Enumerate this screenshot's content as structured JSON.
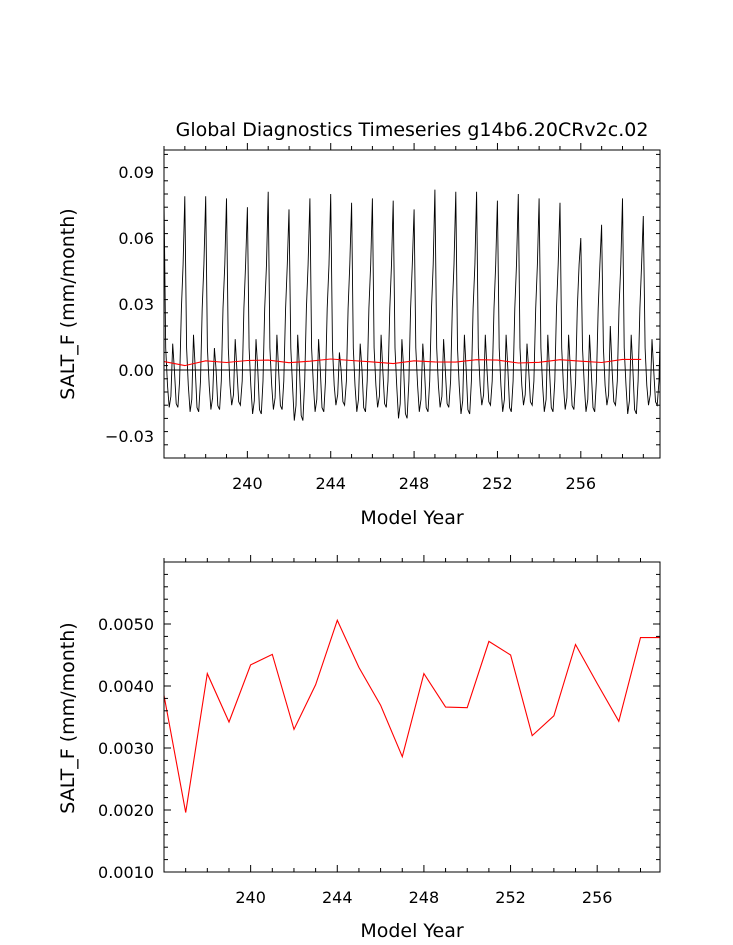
{
  "title": "Global Diagnostics Timeseries g14b6.20CRv2c.02",
  "chart_data": [
    {
      "type": "line",
      "xlabel": "Model Year",
      "ylabel": "SALT_F (mm/month)",
      "xlim": [
        236.0,
        259.8
      ],
      "ylim": [
        -0.04,
        0.1
      ],
      "xticks": [
        240,
        244,
        248,
        252,
        256
      ],
      "xtick_labels": [
        "240",
        "244",
        "248",
        "252",
        "256"
      ],
      "yticks": [
        -0.03,
        0.0,
        0.03,
        0.06,
        0.09
      ],
      "ytick_labels": [
        "−0.03",
        "0.00",
        "0.03",
        "0.06",
        "0.09"
      ],
      "zero_line": true,
      "series": [
        {
          "kind": "monthly",
          "color": "#000000",
          "start": 236.0,
          "months_per_year": 12,
          "annual_peaks": [
            0.078,
            0.079,
            0.079,
            0.078,
            0.074,
            0.081,
            0.073,
            0.078,
            0.08,
            0.076,
            0.078,
            0.077,
            0.073,
            0.082,
            0.081,
            0.081,
            0.077,
            0.08,
            0.078,
            0.076,
            0.06,
            0.066,
            0.078,
            0.07
          ],
          "secondary_peaks": [
            0.012,
            0.016,
            0.01,
            0.014,
            0.014,
            0.016,
            0.016,
            0.014,
            0.008,
            0.012,
            0.016,
            0.014,
            0.012,
            0.014,
            0.016,
            0.016,
            0.016,
            0.012,
            0.016,
            0.016,
            0.016,
            0.02,
            0.016,
            0.014
          ],
          "troughs": [
            -0.017,
            -0.019,
            -0.018,
            -0.016,
            -0.02,
            -0.018,
            -0.023,
            -0.019,
            -0.016,
            -0.019,
            -0.017,
            -0.022,
            -0.019,
            -0.017,
            -0.02,
            -0.016,
            -0.019,
            -0.016,
            -0.019,
            -0.018,
            -0.019,
            -0.016,
            -0.02,
            -0.016
          ]
        },
        {
          "kind": "annual_mean",
          "color": "#ff0000",
          "x": [
            236.0,
            237.0,
            238.0,
            239.0,
            240.0,
            241.0,
            242.0,
            243.0,
            244.0,
            245.0,
            246.0,
            247.0,
            248.0,
            249.0,
            250.0,
            251.0,
            252.0,
            253.0,
            254.0,
            255.0,
            256.0,
            257.0,
            258.0,
            258.9
          ],
          "y": [
            0.0038,
            0.002,
            0.0042,
            0.0034,
            0.0043,
            0.0045,
            0.0033,
            0.004,
            0.005,
            0.0043,
            0.0037,
            0.0029,
            0.0042,
            0.0037,
            0.0036,
            0.0047,
            0.0045,
            0.0032,
            0.0035,
            0.0047,
            0.004,
            0.0034,
            0.0048,
            0.0048
          ]
        }
      ]
    },
    {
      "type": "line",
      "xlabel": "Model Year",
      "ylabel": "SALT_F (mm/month)",
      "xlim": [
        236.0,
        258.9
      ],
      "ylim": [
        0.001,
        0.006
      ],
      "xticks": [
        240,
        244,
        248,
        252,
        256
      ],
      "xtick_labels": [
        "240",
        "244",
        "248",
        "252",
        "256"
      ],
      "yticks": [
        0.001,
        0.002,
        0.003,
        0.004,
        0.005
      ],
      "ytick_labels": [
        "0.0010",
        "0.0020",
        "0.0030",
        "0.0040",
        "0.0050"
      ],
      "series": [
        {
          "kind": "annual_mean",
          "color": "#ff0000",
          "x": [
            236.0,
            237.0,
            238.0,
            239.0,
            240.0,
            241.0,
            242.0,
            243.0,
            244.0,
            245.0,
            246.0,
            247.0,
            248.0,
            249.0,
            250.0,
            251.0,
            252.0,
            253.0,
            254.0,
            255.0,
            256.0,
            257.0,
            258.0,
            258.9
          ],
          "y": [
            0.00385,
            0.00196,
            0.0042,
            0.00342,
            0.00434,
            0.00451,
            0.0033,
            0.00402,
            0.00506,
            0.0043,
            0.00369,
            0.00286,
            0.0042,
            0.00366,
            0.00365,
            0.00472,
            0.0045,
            0.0032,
            0.00352,
            0.00467,
            0.00404,
            0.00343,
            0.00478,
            0.00478
          ]
        }
      ]
    }
  ]
}
